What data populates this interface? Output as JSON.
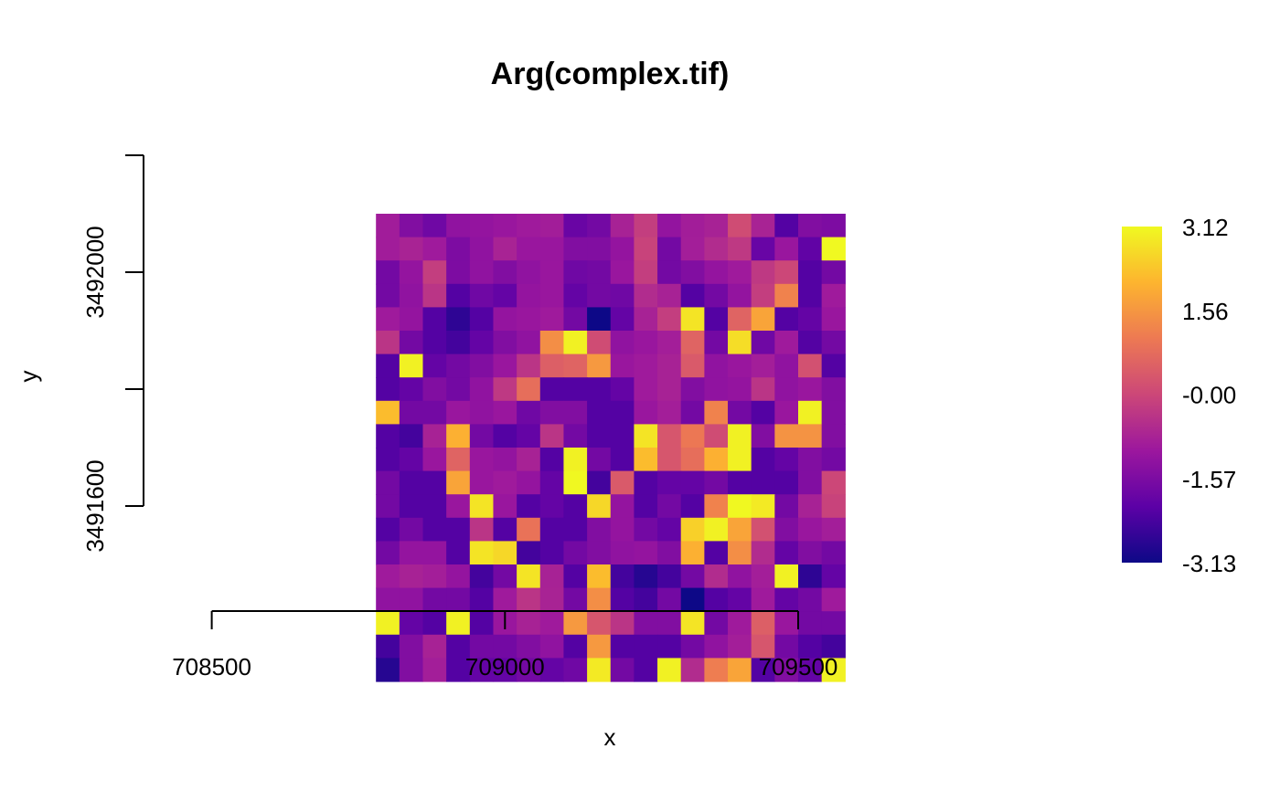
{
  "chart_data": {
    "type": "heatmap",
    "title": "Arg(complex.tif)",
    "xlabel": "x",
    "ylabel": "y",
    "xlim": [
      708245,
      709599
    ],
    "ylim": [
      3491250,
      3492450
    ],
    "extent": {
      "xmin": 708780,
      "xmax": 709580,
      "ymin": 3491300,
      "ymax": 3492100
    },
    "x_ticks": [
      708500,
      709000,
      709500
    ],
    "y_ticks": [
      3491600,
      3491800,
      3492000,
      3492200
    ],
    "y_tick_labels": [
      "3491600",
      "",
      "3492000",
      ""
    ],
    "x_tick_labels": [
      "708500",
      "709000",
      "709500"
    ],
    "ncol": 20,
    "nrow": 20,
    "value_range": [
      -3.13,
      3.12
    ],
    "colormap": [
      "#0d0887",
      "#5c01a6",
      "#9c179e",
      "#cc4778",
      "#ed7953",
      "#fdb42f",
      "#f0f921"
    ],
    "legend": {
      "position": "right",
      "labels": [
        "3.12",
        "1.56",
        "-0.00",
        "-1.57",
        "-3.13"
      ],
      "values": [
        3.12,
        1.56,
        0.0,
        -1.57,
        -3.13
      ]
    },
    "values": [
      [
        -0.94,
        -1.49,
        -1.78,
        -1.25,
        -1.18,
        -1.1,
        -0.98,
        -0.92,
        -1.88,
        -1.72,
        -0.8,
        -0.2,
        -1.2,
        -0.92,
        -0.8,
        0.1,
        -0.78,
        -2.2,
        -1.49,
        -1.55
      ],
      [
        -0.94,
        -0.78,
        -0.98,
        -1.55,
        -1.25,
        -0.78,
        -1.1,
        -1.1,
        -1.49,
        -1.49,
        -1.18,
        -0.1,
        -1.72,
        -0.9,
        -0.6,
        -0.3,
        -1.9,
        -1.1,
        -2.0,
        3.12
      ],
      [
        -1.72,
        -1.18,
        -0.2,
        -1.55,
        -1.25,
        -1.49,
        -1.25,
        -1.1,
        -1.78,
        -1.72,
        -1.1,
        -0.2,
        -1.72,
        -1.49,
        -1.18,
        -0.98,
        -0.3,
        0.0,
        -2.2,
        -1.72
      ],
      [
        -1.72,
        -1.25,
        -0.4,
        -2.2,
        -1.78,
        -1.95,
        -1.18,
        -1.1,
        -1.95,
        -1.72,
        -1.78,
        -0.6,
        -0.8,
        -2.2,
        -1.72,
        -1.2,
        -0.2,
        1.2,
        -2.2,
        -0.98
      ],
      [
        -0.98,
        -1.18,
        -2.2,
        -2.7,
        -2.2,
        -1.18,
        -1.1,
        -0.98,
        -1.72,
        -3.13,
        -1.95,
        -0.8,
        -0.2,
        2.8,
        -2.2,
        0.6,
        1.8,
        -2.2,
        -1.95,
        -1.1
      ],
      [
        -0.4,
        -1.72,
        -2.2,
        -2.4,
        -1.95,
        -1.49,
        -1.25,
        1.4,
        3.0,
        0.1,
        -1.25,
        -1.1,
        -0.9,
        0.6,
        -1.72,
        2.7,
        -1.78,
        -0.98,
        -2.2,
        -1.72
      ],
      [
        -2.2,
        3.0,
        -1.95,
        -1.72,
        -1.49,
        -1.1,
        -0.4,
        0.5,
        0.6,
        1.6,
        -1.1,
        -0.98,
        -0.8,
        0.4,
        -1.25,
        -1.1,
        -0.9,
        -1.25,
        0.2,
        -2.2
      ],
      [
        -2.2,
        -1.95,
        -1.49,
        -1.72,
        -1.25,
        -0.3,
        0.8,
        -2.2,
        -2.2,
        -2.2,
        -1.95,
        -0.98,
        -0.8,
        -1.49,
        -1.25,
        -1.18,
        -0.4,
        -1.25,
        -1.1,
        -1.49
      ],
      [
        2.2,
        -1.72,
        -1.72,
        -1.1,
        -1.25,
        -1.1,
        -1.78,
        -1.49,
        -1.49,
        -2.2,
        -2.2,
        -1.1,
        -0.9,
        -1.72,
        1.2,
        -1.72,
        -2.2,
        -1.1,
        3.0,
        -1.49
      ],
      [
        -2.2,
        -2.4,
        -0.8,
        2.0,
        -1.72,
        -2.2,
        -1.95,
        -0.4,
        -1.72,
        -2.2,
        -2.2,
        2.8,
        0.3,
        1.0,
        0.1,
        3.0,
        -1.49,
        1.5,
        1.5,
        -1.49
      ],
      [
        -2.2,
        -1.95,
        -1.1,
        0.6,
        -1.1,
        -1.2,
        -0.8,
        -2.2,
        3.0,
        -1.72,
        -2.2,
        2.2,
        0.3,
        0.8,
        2.0,
        3.0,
        -2.2,
        -1.95,
        -1.49,
        -1.72
      ],
      [
        -1.72,
        -2.2,
        -2.2,
        1.8,
        -1.1,
        -0.98,
        -1.18,
        -1.95,
        3.1,
        -2.4,
        0.4,
        -2.2,
        -1.95,
        -1.95,
        -1.72,
        -2.2,
        -2.2,
        -2.2,
        -1.49,
        0.0
      ],
      [
        -1.72,
        -2.2,
        -2.2,
        -1.1,
        2.8,
        -1.1,
        -2.2,
        -1.95,
        -2.2,
        2.6,
        -1.18,
        -2.2,
        -1.72,
        -2.2,
        1.2,
        3.1,
        2.9,
        -1.72,
        -0.8,
        -0.1
      ],
      [
        -2.2,
        -1.72,
        -2.2,
        -2.2,
        -0.4,
        -2.2,
        0.9,
        -2.2,
        -2.2,
        -1.49,
        -1.18,
        -1.72,
        -1.95,
        2.5,
        3.0,
        1.8,
        0.2,
        -1.49,
        -1.1,
        -0.9
      ],
      [
        -1.72,
        -1.18,
        -1.18,
        -2.2,
        2.8,
        2.6,
        -2.4,
        -2.2,
        -1.72,
        -1.49,
        -1.25,
        -1.18,
        -1.49,
        2.0,
        -2.2,
        1.4,
        -0.6,
        -1.95,
        -1.49,
        -1.72
      ],
      [
        -0.98,
        -0.8,
        -0.9,
        -1.18,
        -2.4,
        -1.72,
        2.8,
        -0.8,
        -2.2,
        2.2,
        -2.4,
        -2.8,
        -2.4,
        -1.72,
        -0.6,
        -1.25,
        -0.9,
        3.0,
        -2.7,
        -1.95
      ],
      [
        -1.25,
        -1.25,
        -1.72,
        -1.72,
        -2.2,
        -0.98,
        -0.4,
        -0.78,
        -1.72,
        1.4,
        -2.2,
        -2.4,
        -1.72,
        -3.13,
        -2.2,
        -1.95,
        -0.98,
        -1.95,
        -1.72,
        -0.98
      ],
      [
        3.0,
        -1.95,
        -2.2,
        3.0,
        -2.2,
        -1.1,
        -0.8,
        -0.98,
        1.6,
        0.3,
        -0.4,
        -1.49,
        -1.49,
        2.8,
        -1.72,
        -0.98,
        0.5,
        -1.1,
        -1.72,
        -1.72
      ],
      [
        -2.4,
        -1.49,
        -0.8,
        -2.2,
        -1.72,
        -1.72,
        -1.49,
        -1.25,
        -2.2,
        1.6,
        -2.2,
        -2.2,
        -2.2,
        -1.72,
        -1.25,
        -0.9,
        0.3,
        -1.72,
        -2.2,
        -2.4
      ],
      [
        -2.8,
        -1.49,
        -0.9,
        -2.2,
        -1.95,
        -1.95,
        -1.72,
        -1.95,
        -1.78,
        2.9,
        -1.72,
        -2.2,
        3.0,
        -0.6,
        1.1,
        1.8,
        -2.2,
        -1.49,
        -1.95,
        3.0
      ]
    ]
  }
}
